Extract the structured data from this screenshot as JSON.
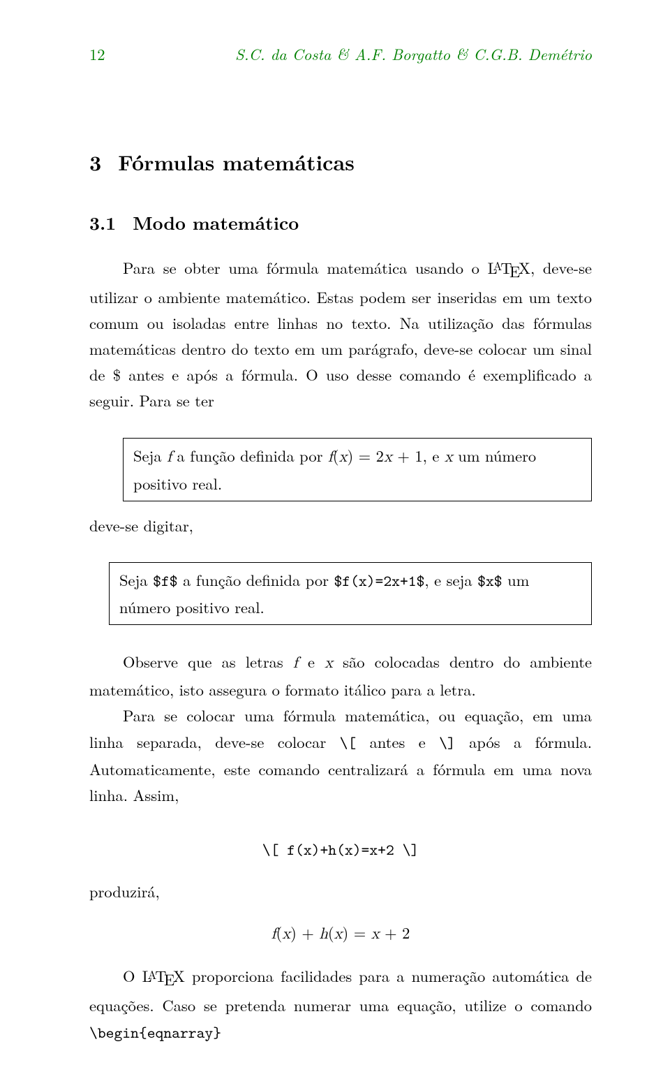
{
  "running_head": {
    "page_number": "12",
    "authors": "S.C. da Costa & A.F. Borgatto & C.G.B. Demétrio",
    "color": "#008000"
  },
  "section": {
    "number": "3",
    "title": "Fórmulas matemáticas"
  },
  "subsection": {
    "number": "3.1",
    "title": "Modo matemático"
  },
  "paragraph1_a": "Para se obter uma fórmula matemática usando o ",
  "paragraph1_b": ", deve-se utilizar o ambiente matemático. Estas podem ser inseridas em um texto comum ou isoladas entre linhas no texto. Na utilização das fórmulas matemáticas dentro do texto em um parágrafo, deve-se colocar um sinal de $ antes e após a fórmula. O uso desse comando é exemplificado a seguir. Para se ter",
  "box1_a": "Seja ",
  "box1_f": "f",
  "box1_b": " a função definida por ",
  "box1_fx": "f",
  "box1_paren_l": "(",
  "box1_x": "x",
  "box1_paren_r": ") = 2",
  "box1_x2": "x",
  "box1_plus": " + 1, e ",
  "box1_x3": "x",
  "box1_c": " um número positivo real.",
  "deve_se_digitar": "deve-se digitar,",
  "box2_a": "Seja ",
  "box2_code1": "$f$",
  "box2_b": " a função definida por ",
  "box2_code2": "$f(x)=2x+1$",
  "box2_c": ", e seja ",
  "box2_code3": "$x$",
  "box2_d": " um número positivo real.",
  "paragraph2_a": "Observe que as letras ",
  "paragraph2_f": "f",
  "paragraph2_b": " e ",
  "paragraph2_x": "x",
  "paragraph2_c": " são colocadas dentro do ambiente matemático, isto assegura o formato itálico para a letra.",
  "paragraph3_a": "Para se colocar uma fórmula matemática, ou equação, em uma linha separada, deve-se colocar ",
  "paragraph3_code1": "\\[",
  "paragraph3_b": " antes e ",
  "paragraph3_code2": "\\]",
  "paragraph3_c": " após a fórmula. Automaticamente, este comando centralizará a fórmula em uma nova linha. Assim,",
  "display_code": "\\[ f(x)+h(x)=x+2 \\]",
  "produzira": "produzirá,",
  "display_math_f": "f",
  "display_math_1": "(",
  "display_math_x1": "x",
  "display_math_2": ") + ",
  "display_math_h": "h",
  "display_math_3": "(",
  "display_math_x2": "x",
  "display_math_4": ") = ",
  "display_math_x3": "x",
  "display_math_5": " + 2",
  "paragraph4_a": "O ",
  "paragraph4_b": " proporciona facilidades para a numeração automática de equações. Caso se pretenda numerar uma equação, utilize o comando ",
  "paragraph4_code": "\\begin{eqnarray}",
  "latex_word": "LATEX"
}
